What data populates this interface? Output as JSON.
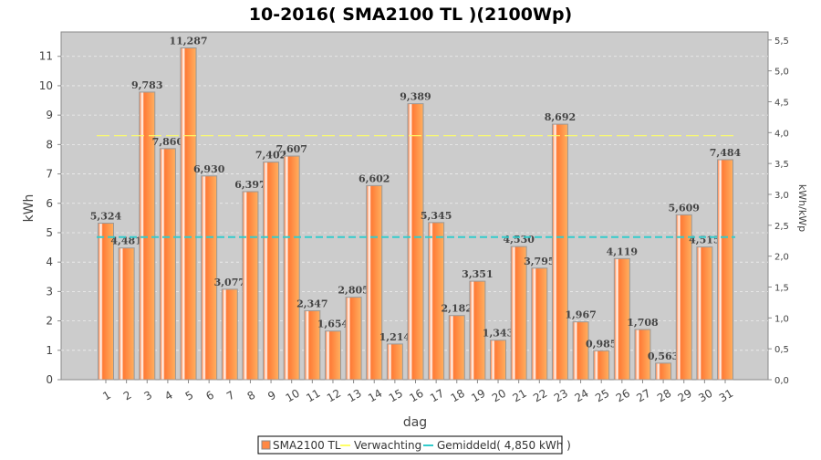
{
  "chart_data": {
    "type": "bar",
    "title": "10-2016( SMA2100 TL )(2100Wp)",
    "xlabel": "dag",
    "ylabel": "kWh",
    "ylabel_right": "kWh/kWp",
    "ylim": [
      0,
      11.83
    ],
    "ylim_right": [
      0,
      5.63
    ],
    "yticks": [
      0,
      1,
      2,
      3,
      4,
      5,
      6,
      7,
      8,
      9,
      10,
      11
    ],
    "yticks_right": [
      "0,0",
      "0,5",
      "1,0",
      "1,5",
      "2,0",
      "2,5",
      "3,0",
      "3,5",
      "4,0",
      "4,5",
      "5,0",
      "5,5"
    ],
    "categories": [
      "1",
      "2",
      "3",
      "4",
      "5",
      "6",
      "7",
      "8",
      "9",
      "10",
      "11",
      "12",
      "13",
      "14",
      "15",
      "16",
      "17",
      "18",
      "19",
      "20",
      "21",
      "22",
      "23",
      "24",
      "25",
      "26",
      "27",
      "28",
      "29",
      "30",
      "31"
    ],
    "series": [
      {
        "name": "SMA2100 TL",
        "values": [
          5.324,
          4.481,
          9.783,
          7.86,
          11.287,
          6.93,
          3.077,
          6.397,
          7.402,
          7.607,
          2.347,
          1.654,
          2.805,
          6.602,
          1.214,
          9.389,
          5.345,
          2.182,
          3.351,
          1.343,
          4.53,
          3.795,
          8.692,
          1.967,
          0.985,
          4.119,
          1.708,
          0.563,
          5.609,
          4.515,
          7.484
        ],
        "labels": [
          "5,324",
          "4,481",
          "9,783",
          "7,860",
          "11,287",
          "6,930",
          "3,077",
          "6,397",
          "7,402",
          "7,607",
          "2,347",
          "1,654",
          "2,805",
          "6,602",
          "1,214",
          "9,389",
          "5,345",
          "2,182",
          "3,351",
          "1,343",
          "4,530",
          "3,795",
          "8,692",
          "1,967",
          "0,985",
          "4,119",
          "1,708",
          "0,563",
          "5,609",
          "4,515",
          "7,484"
        ]
      }
    ],
    "lines": [
      {
        "name": "Verwachting",
        "value": 8.3,
        "color": "#ffff66"
      },
      {
        "name": "Gemiddeld( 4,850 kWh )",
        "value": 4.85,
        "color": "#33cccc"
      }
    ],
    "legend": [
      "SMA2100 TL",
      "Verwachting",
      "Gemiddeld( 4,850 kWh )"
    ],
    "legend_placement": "bottom",
    "grid": true,
    "colors": {
      "bar": "#ff8844",
      "plot_bg": "#cccccc"
    }
  }
}
